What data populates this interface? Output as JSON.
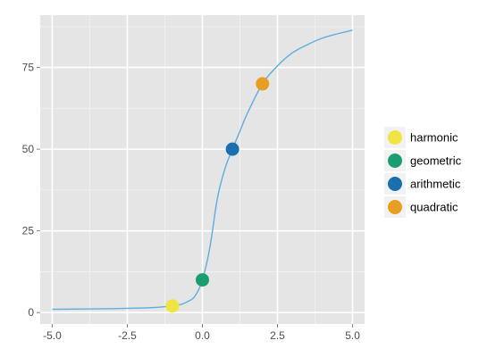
{
  "chart_data": {
    "type": "scatter",
    "xlim": [
      -5.4,
      5.4
    ],
    "ylim": [
      -3.5,
      91
    ],
    "x_ticks": [
      {
        "value": -5.0,
        "label": "-5.0"
      },
      {
        "value": -2.5,
        "label": "-2.5"
      },
      {
        "value": 0.0,
        "label": "0.0"
      },
      {
        "value": 2.5,
        "label": "2.5"
      },
      {
        "value": 5.0,
        "label": "5.0"
      }
    ],
    "y_ticks": [
      {
        "value": 0,
        "label": "0"
      },
      {
        "value": 25,
        "label": "25"
      },
      {
        "value": 50,
        "label": "50"
      },
      {
        "value": 75,
        "label": "75"
      }
    ],
    "grid": true,
    "legend_position": "right",
    "curve": {
      "color": "#5dade2",
      "x": [
        -5.0,
        -4.0,
        -3.0,
        -2.0,
        -1.5,
        -1.0,
        -0.75,
        -0.5,
        -0.25,
        0.0,
        0.25,
        0.5,
        0.75,
        1.0,
        1.25,
        1.5,
        2.0,
        2.5,
        3.0,
        3.5,
        4.0,
        4.5,
        5.0
      ],
      "y": [
        1,
        1.1,
        1.2,
        1.4,
        1.6,
        2,
        2.4,
        3.3,
        5,
        10,
        20,
        35,
        44,
        50,
        55.5,
        61,
        70,
        75.5,
        79.5,
        82,
        84,
        85.3,
        86.4
      ]
    },
    "points": [
      {
        "name": "harmonic",
        "x": -1.0,
        "y": 2,
        "color": "#f0e442"
      },
      {
        "name": "geometric",
        "x": 0.0,
        "y": 10,
        "color": "#1a9e6f"
      },
      {
        "name": "arithmetic",
        "x": 1.0,
        "y": 50,
        "color": "#1a6fae"
      },
      {
        "name": "quadratic",
        "x": 2.0,
        "y": 70,
        "color": "#e69f22"
      }
    ],
    "colors": {
      "panel_background": "#e5e5e5",
      "grid_major": "#ffffff",
      "grid_minor": "#f2f2f2",
      "legend_key_background": "#f2f2f2"
    }
  }
}
